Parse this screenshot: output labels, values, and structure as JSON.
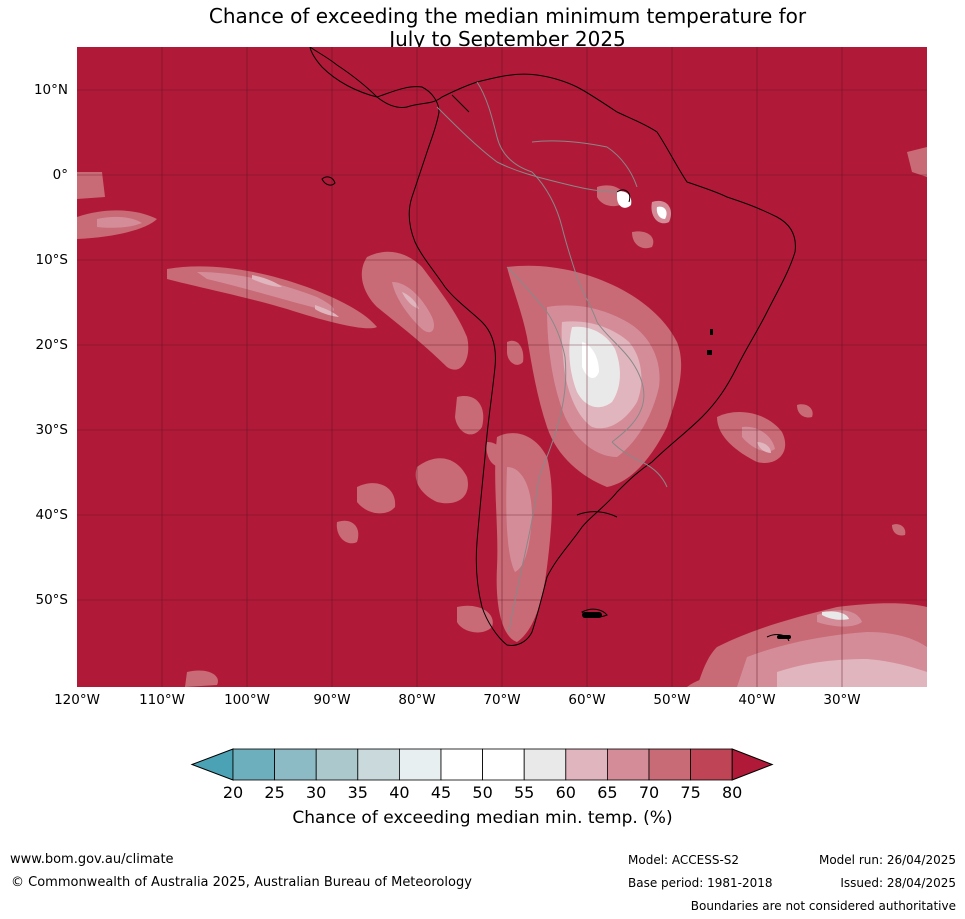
{
  "title": {
    "line1": "Chance of exceeding the median minimum temperature for",
    "line2": "July to September 2025"
  },
  "map": {
    "lat_labels": [
      "10°N",
      "0°",
      "10°S",
      "20°S",
      "30°S",
      "40°S",
      "50°S"
    ],
    "lon_labels": [
      "120°W",
      "110°W",
      "100°W",
      "90°W",
      "80°W",
      "70°W",
      "60°W",
      "50°W",
      "40°W",
      "30°W"
    ],
    "background_color": "#b01a38"
  },
  "legend": {
    "ticks": [
      "20",
      "25",
      "30",
      "35",
      "40",
      "45",
      "50",
      "55",
      "60",
      "65",
      "70",
      "75",
      "80"
    ],
    "colors": [
      "#4aa2b4",
      "#6eafbe",
      "#8cbac5",
      "#abc9cd",
      "#c9d9dc",
      "#e8eff1",
      "#ffffff",
      "#ffffff",
      "#eae9ea",
      "#e0b5bd",
      "#d48d98",
      "#c86b76",
      "#bf4556",
      "#b01a38"
    ],
    "title": "Chance of exceeding median min. temp. (%)"
  },
  "footer": {
    "url": "www.bom.gov.au/climate",
    "copyright": "© Commonwealth of Australia 2025, Australian Bureau of Meteorology",
    "model": "Model: ACCESS-S2",
    "base_period": "Base period: 1981-2018",
    "model_run": "Model run: 26/04/2025",
    "issued": "Issued: 28/04/2025",
    "disclaimer": "Boundaries are not considered authoritative"
  }
}
